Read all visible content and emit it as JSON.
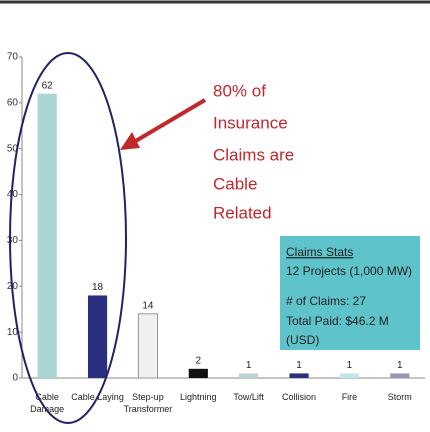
{
  "chart_data": {
    "type": "bar",
    "categories": [
      "Cable\nDamage",
      "Cable Laying",
      "Step-up\nTransformer",
      "Lightning",
      "Tow/Lift",
      "Collision",
      "Fire",
      "Storm"
    ],
    "values": [
      62,
      18,
      14,
      2,
      1,
      1,
      1,
      1
    ],
    "colors": [
      "#a9d5d3",
      "#2b2f80",
      "#f0f0f0",
      "#111111",
      "#b9d3d3",
      "#2b2f80",
      "#c4e4ec",
      "#9696b4"
    ],
    "ylim": [
      0,
      70
    ],
    "yticks": [
      0,
      10,
      20,
      30,
      40,
      50,
      60,
      70
    ],
    "annotation": [
      "80% of",
      "Insurance",
      "Claims are",
      "Cable",
      "Related"
    ],
    "stats": {
      "title": "Claims Stats",
      "lines": [
        "12 Projects (1,000 MW)",
        "# of Claims: 27",
        "Total Paid:  $46.2 M",
        "(USD)"
      ]
    }
  }
}
